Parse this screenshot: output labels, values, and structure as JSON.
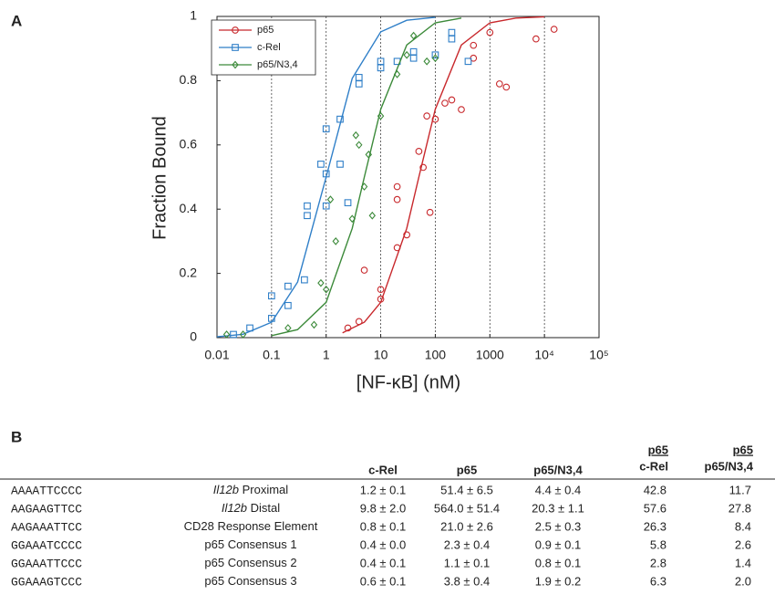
{
  "panel_labels": [
    "A",
    "B"
  ],
  "chart_data": {
    "type": "scatter",
    "xlabel": "[NF-κB] (nM)",
    "ylabel": "Fraction Bound",
    "xscale": "log",
    "xlim": [
      0.01,
      100000
    ],
    "xticks": [
      0.01,
      0.1,
      1,
      10,
      100,
      1000,
      {
        "value": 10000,
        "label": "10⁴"
      },
      {
        "value": 100000,
        "label": "10⁵"
      }
    ],
    "ylim": [
      0,
      1
    ],
    "yticks": [
      0,
      0.2,
      0.4,
      0.6,
      0.8,
      1
    ],
    "grid": "x",
    "legend": "upper left",
    "series": [
      {
        "name": "p65",
        "color": "#c8282c",
        "marker": "circle",
        "x": [
          2.5,
          4,
          5,
          10,
          10,
          20,
          20,
          20,
          30,
          50,
          60,
          70,
          80,
          100,
          150,
          200,
          300,
          500,
          500,
          1000,
          1500,
          2000,
          7000,
          15000
        ],
        "y": [
          0.03,
          0.05,
          0.21,
          0.12,
          0.15,
          0.43,
          0.47,
          0.28,
          0.32,
          0.58,
          0.53,
          0.69,
          0.39,
          0.68,
          0.73,
          0.74,
          0.71,
          0.91,
          0.87,
          0.95,
          0.79,
          0.78,
          0.93,
          0.96
        ],
        "fit_x": [
          2,
          5,
          10,
          30,
          50,
          100,
          300,
          1000,
          3000,
          10000
        ],
        "fit_y": [
          0.015,
          0.048,
          0.11,
          0.34,
          0.5,
          0.711,
          0.911,
          0.98,
          0.995,
          0.999
        ]
      },
      {
        "name": "c-Rel",
        "color": "#2f7fc8",
        "marker": "square",
        "x": [
          0.02,
          0.04,
          0.1,
          0.1,
          0.2,
          0.2,
          0.4,
          0.45,
          0.45,
          0.8,
          1,
          1,
          1,
          1.8,
          1.8,
          2.5,
          4,
          4,
          10,
          10,
          20,
          40,
          40,
          100,
          200,
          200,
          400
        ],
        "y": [
          0.01,
          0.03,
          0.06,
          0.13,
          0.16,
          0.1,
          0.18,
          0.38,
          0.41,
          0.54,
          0.65,
          0.51,
          0.41,
          0.68,
          0.54,
          0.42,
          0.81,
          0.79,
          0.86,
          0.84,
          0.86,
          0.89,
          0.87,
          0.88,
          0.95,
          0.93,
          0.86
        ],
        "fit_x": [
          0.01,
          0.03,
          0.1,
          0.3,
          1,
          3,
          10,
          30,
          100
        ],
        "fit_y": [
          0.0025,
          0.0104,
          0.048,
          0.173,
          0.5,
          0.807,
          0.952,
          0.988,
          0.9975
        ]
      },
      {
        "name": "p65/N3,4",
        "color": "#3c8a3a",
        "marker": "diamond",
        "x": [
          0.015,
          0.03,
          0.2,
          0.6,
          0.8,
          1,
          1.2,
          1.5,
          3,
          3.5,
          4,
          5,
          6,
          7,
          10,
          20,
          30,
          40,
          70,
          100
        ],
        "y": [
          0.01,
          0.01,
          0.03,
          0.04,
          0.17,
          0.15,
          0.43,
          0.3,
          0.37,
          0.63,
          0.6,
          0.47,
          0.57,
          0.38,
          0.69,
          0.82,
          0.88,
          0.94,
          0.86,
          0.87
        ],
        "fit_x": [
          0.1,
          0.3,
          1,
          3,
          5,
          10,
          30,
          100,
          300
        ],
        "fit_y": [
          0.0062,
          0.025,
          0.11,
          0.34,
          0.5,
          0.711,
          0.911,
          0.98,
          0.995
        ]
      }
    ]
  },
  "table": {
    "headers": [
      "c-Rel",
      "p65",
      "p65/N3,4"
    ],
    "ratio_headers": [
      {
        "num": "p65",
        "den": "c-Rel"
      },
      {
        "num": "p65",
        "den": "p65/N3,4"
      }
    ],
    "rows": [
      {
        "sequence": "AAAATTCCCC",
        "gene": "Il12b",
        "name": " Proximal",
        "values": [
          "1.2 ± 0.1",
          "51.4 ±  6.5",
          "4.4 ± 0.4"
        ],
        "ratios": [
          "42.8",
          "11.7"
        ]
      },
      {
        "sequence": "AAGAAGTTCC",
        "gene": "Il12b",
        "name": " Distal",
        "values": [
          "9.8 ± 2.0",
          "564.0 ± 51.4",
          "20.3  ± 1.1"
        ],
        "ratios": [
          "57.6",
          "27.8"
        ]
      },
      {
        "sequence": "AAGAAATTCC",
        "name": "CD28 Response Element",
        "values": [
          "0.8 ± 0.1",
          "21.0 ±  2.6",
          "2.5 ± 0.3"
        ],
        "ratios": [
          "26.3",
          "8.4"
        ]
      },
      {
        "sequence": "GGAAATCCCC",
        "name": "p65 Consensus 1",
        "values": [
          "0.4 ± 0.0",
          "2.3 ±  0.4",
          "0.9 ± 0.1"
        ],
        "ratios": [
          "5.8",
          "2.6"
        ]
      },
      {
        "sequence": "GGAAATTCCC",
        "name": "p65 Consensus 2",
        "values": [
          "0.4 ± 0.1",
          "1.1 ±  0.1",
          "0.8 ± 0.1"
        ],
        "ratios": [
          "2.8",
          "1.4"
        ]
      },
      {
        "sequence": "GGAAAGTCCC",
        "name": "p65 Consensus 3",
        "values": [
          "0.6 ± 0.1",
          "3.8 ±  0.4",
          "1.9 ± 0.2"
        ],
        "ratios": [
          "6.3",
          "2.0"
        ]
      }
    ]
  }
}
